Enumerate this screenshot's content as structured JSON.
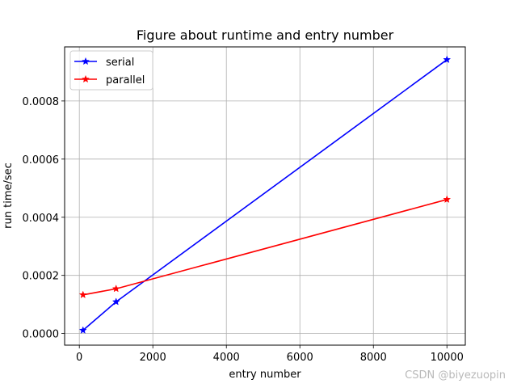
{
  "chart_data": {
    "type": "line",
    "title": "Figure about runtime and entry number",
    "xlabel": "entry number",
    "ylabel": "run time/sec",
    "xlim": [
      -400,
      10500
    ],
    "ylim": [
      -4e-05,
      0.000986
    ],
    "x_ticks": [
      0,
      2000,
      4000,
      6000,
      8000,
      10000
    ],
    "x_tick_labels": [
      "0",
      "2000",
      "4000",
      "6000",
      "8000",
      "10000"
    ],
    "y_ticks": [
      0,
      0.0002,
      0.0004,
      0.0006,
      0.0008
    ],
    "y_tick_labels": [
      "0.0000",
      "0.0002",
      "0.0004",
      "0.0006",
      "0.0008"
    ],
    "grid": true,
    "legend_position": "top-left",
    "series": [
      {
        "name": "serial",
        "color": "#0000ff",
        "marker": "star",
        "x": [
          100,
          1000,
          10000
        ],
        "y": [
          1.1e-05,
          0.000109,
          0.000942
        ]
      },
      {
        "name": "parallel",
        "color": "#ff0000",
        "marker": "star",
        "x": [
          100,
          1000,
          10000
        ],
        "y": [
          0.000133,
          0.000154,
          0.000461
        ]
      }
    ]
  },
  "watermark": "CSDN @biyezuopin"
}
